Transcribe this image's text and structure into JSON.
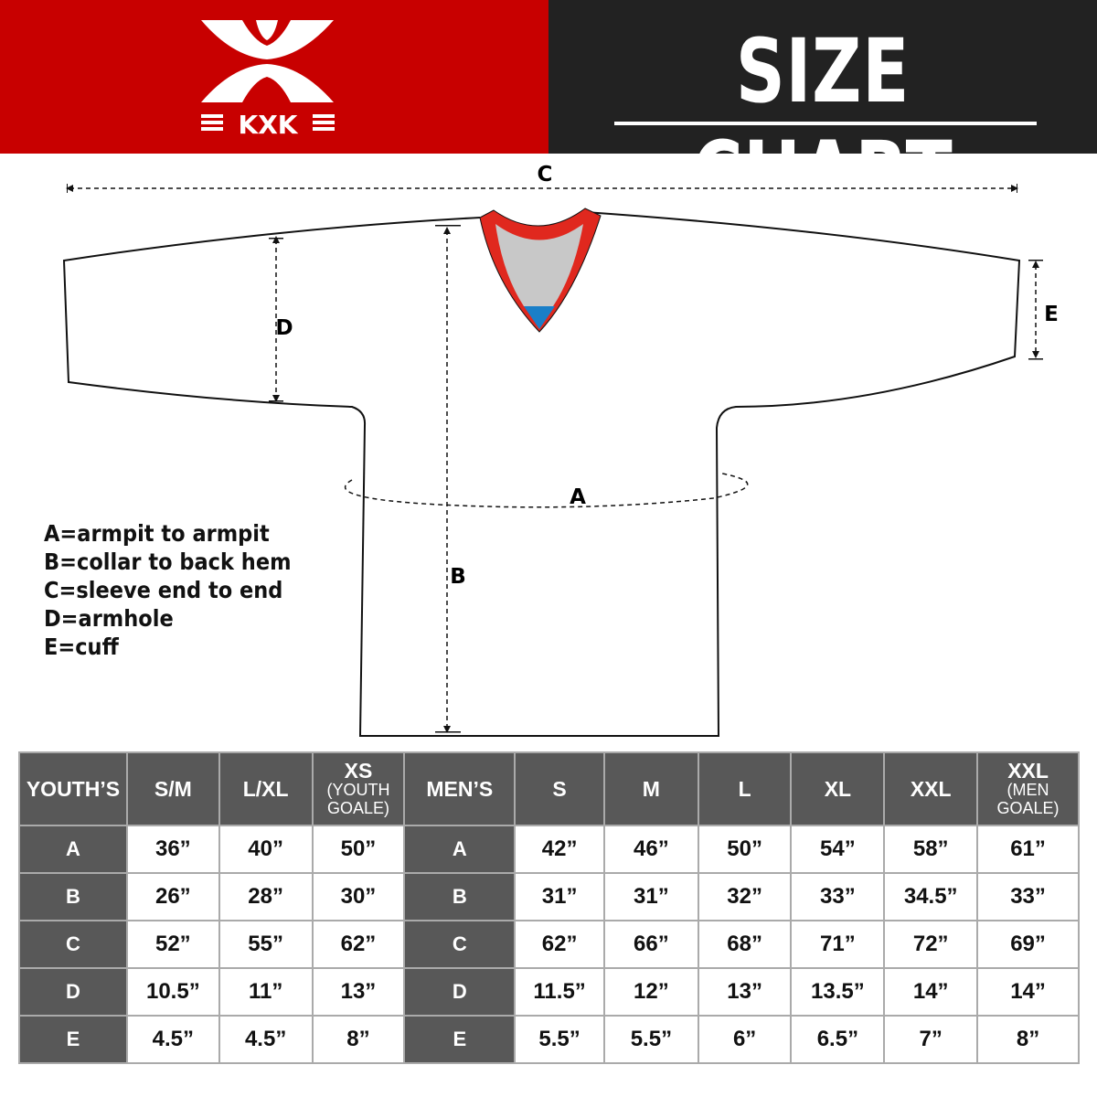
{
  "brand": {
    "name": "KXK",
    "primary_color": "#c80000",
    "dark_color": "#222222"
  },
  "header": {
    "title": "SIZE CHART"
  },
  "diagram": {
    "labels": {
      "A": "A",
      "B": "B",
      "C": "C",
      "D": "D",
      "E": "E"
    },
    "collar_colors": [
      "#e0281e",
      "#c8c8c8",
      "#1a7fc8"
    ]
  },
  "legend": [
    "A=armpit to armpit",
    "B=collar to back hem",
    "C=sleeve end to end",
    "D=armhole",
    "E=cuff"
  ],
  "table": {
    "youth_header": "YOUTH’S",
    "men_header": "MEN’S",
    "youth_sizes": [
      {
        "main": "S/M",
        "sub": ""
      },
      {
        "main": "L/XL",
        "sub": ""
      },
      {
        "main": "XS",
        "sub": "(YOUTH GOALE)"
      }
    ],
    "men_sizes": [
      {
        "main": "S",
        "sub": ""
      },
      {
        "main": "M",
        "sub": ""
      },
      {
        "main": "L",
        "sub": ""
      },
      {
        "main": "XL",
        "sub": ""
      },
      {
        "main": "XXL",
        "sub": ""
      },
      {
        "main": "XXL",
        "sub": "(MEN GOALE)"
      }
    ],
    "rows": [
      {
        "key": "A",
        "youth": [
          "36”",
          "40”",
          "50”"
        ],
        "men": [
          "42”",
          "46”",
          "50”",
          "54”",
          "58”",
          "61”"
        ]
      },
      {
        "key": "B",
        "youth": [
          "26”",
          "28”",
          "30”"
        ],
        "men": [
          "31”",
          "31”",
          "32”",
          "33”",
          "34.5”",
          "33”"
        ]
      },
      {
        "key": "C",
        "youth": [
          "52”",
          "55”",
          "62”"
        ],
        "men": [
          "62”",
          "66”",
          "68”",
          "71”",
          "72”",
          "69”"
        ]
      },
      {
        "key": "D",
        "youth": [
          "10.5”",
          "11”",
          "13”"
        ],
        "men": [
          "11.5”",
          "12”",
          "13”",
          "13.5”",
          "14”",
          "14”"
        ]
      },
      {
        "key": "E",
        "youth": [
          "4.5”",
          "4.5”",
          "8”"
        ],
        "men": [
          "5.5”",
          "5.5”",
          "6”",
          "6.5”",
          "7”",
          "8”"
        ]
      }
    ]
  }
}
